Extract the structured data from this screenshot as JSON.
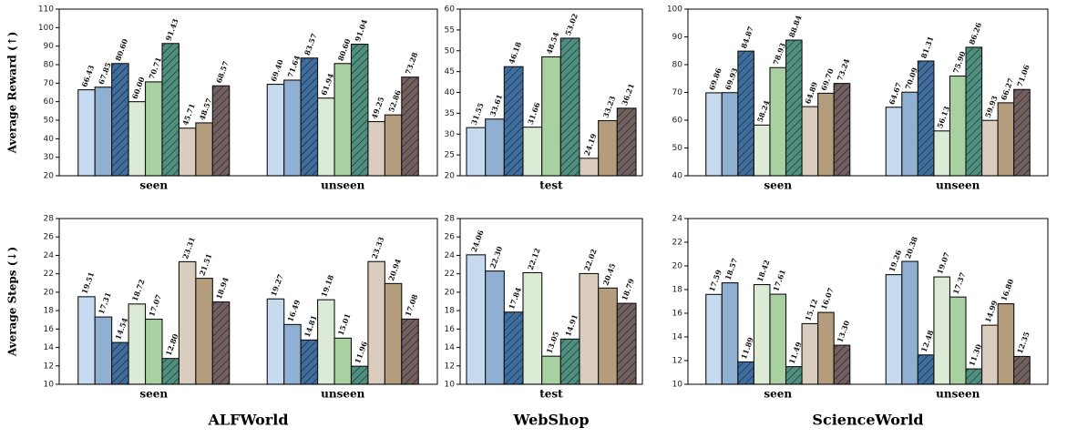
{
  "chart_data": [
    {
      "type": "bar",
      "ylabel": "Average Reward (↑)",
      "categories": [
        "seen",
        "unseen"
      ],
      "ylim": [
        20,
        110
      ],
      "yticks": [
        20,
        30,
        40,
        50,
        60,
        70,
        80,
        90,
        100,
        110
      ],
      "series": [
        {
          "color": "#c6dbef",
          "hatch": false,
          "values": [
            66.43,
            69.4
          ],
          "value_labels": [
            "66.43",
            "69.40"
          ]
        },
        {
          "color": "#8fb0d3",
          "hatch": false,
          "values": [
            67.85,
            71.64
          ],
          "value_labels": [
            "67.85",
            "71.64"
          ]
        },
        {
          "color": "#3f6d9e",
          "hatch": true,
          "values": [
            80.6,
            83.57
          ],
          "value_labels": [
            "80.60",
            "83.57"
          ]
        },
        {
          "color": "#dcebd5",
          "hatch": false,
          "values": [
            60.0,
            61.94
          ],
          "value_labels": [
            "60.00",
            "61.94"
          ]
        },
        {
          "color": "#a9d0a0",
          "hatch": false,
          "values": [
            70.71,
            80.6
          ],
          "value_labels": [
            "70.71",
            "80.60"
          ]
        },
        {
          "color": "#4f8f80",
          "hatch": true,
          "values": [
            91.43,
            91.04
          ],
          "value_labels": [
            "91.43",
            "91.04"
          ]
        },
        {
          "color": "#dacdbf",
          "hatch": false,
          "values": [
            45.71,
            49.25
          ],
          "value_labels": [
            "45.71",
            "49.25"
          ]
        },
        {
          "color": "#b39d7d",
          "hatch": false,
          "values": [
            48.57,
            52.86
          ],
          "value_labels": [
            "48.57",
            "52.86"
          ]
        },
        {
          "color": "#725f60",
          "hatch": true,
          "values": [
            68.57,
            73.28
          ],
          "value_labels": [
            "68.57",
            "73.28"
          ]
        }
      ]
    },
    {
      "type": "bar",
      "categories": [
        "test"
      ],
      "ylim": [
        20,
        60
      ],
      "yticks": [
        20,
        25,
        30,
        35,
        40,
        45,
        50,
        55,
        60
      ],
      "series": [
        {
          "color": "#c6dbef",
          "hatch": false,
          "values": [
            31.55
          ],
          "value_labels": [
            "31.55"
          ]
        },
        {
          "color": "#8fb0d3",
          "hatch": false,
          "values": [
            33.61
          ],
          "value_labels": [
            "33.61"
          ]
        },
        {
          "color": "#3f6d9e",
          "hatch": true,
          "values": [
            46.18
          ],
          "value_labels": [
            "46.18"
          ]
        },
        {
          "color": "#dcebd5",
          "hatch": false,
          "values": [
            31.66
          ],
          "value_labels": [
            "31.66"
          ]
        },
        {
          "color": "#a9d0a0",
          "hatch": false,
          "values": [
            48.54
          ],
          "value_labels": [
            "48.54"
          ]
        },
        {
          "color": "#4f8f80",
          "hatch": true,
          "values": [
            53.02
          ],
          "value_labels": [
            "53.02"
          ]
        },
        {
          "color": "#dacdbf",
          "hatch": false,
          "values": [
            24.19
          ],
          "value_labels": [
            "24.19"
          ]
        },
        {
          "color": "#b39d7d",
          "hatch": false,
          "values": [
            33.23
          ],
          "value_labels": [
            "33.23"
          ]
        },
        {
          "color": "#725f60",
          "hatch": true,
          "values": [
            36.21
          ],
          "value_labels": [
            "36.21"
          ]
        }
      ]
    },
    {
      "type": "bar",
      "categories": [
        "seen",
        "unseen"
      ],
      "ylim": [
        40,
        100
      ],
      "yticks": [
        40,
        50,
        60,
        70,
        80,
        90,
        100
      ],
      "series": [
        {
          "color": "#c6dbef",
          "hatch": false,
          "values": [
            69.86,
            64.67
          ],
          "value_labels": [
            "69.86",
            "64.67"
          ]
        },
        {
          "color": "#8fb0d3",
          "hatch": false,
          "values": [
            69.93,
            70.09
          ],
          "value_labels": [
            "69.93",
            "70.09"
          ]
        },
        {
          "color": "#3f6d9e",
          "hatch": true,
          "values": [
            84.87,
            81.31
          ],
          "value_labels": [
            "84.87",
            "81.31"
          ]
        },
        {
          "color": "#dcebd5",
          "hatch": false,
          "values": [
            58.24,
            56.13
          ],
          "value_labels": [
            "58.24",
            "56.13"
          ]
        },
        {
          "color": "#a9d0a0",
          "hatch": false,
          "values": [
            78.93,
            75.9
          ],
          "value_labels": [
            "78.93",
            "75.90"
          ]
        },
        {
          "color": "#4f8f80",
          "hatch": true,
          "values": [
            88.84,
            86.26
          ],
          "value_labels": [
            "88.84",
            "86.26"
          ]
        },
        {
          "color": "#dacdbf",
          "hatch": false,
          "values": [
            64.89,
            59.93
          ],
          "value_labels": [
            "64.89",
            "59.93"
          ]
        },
        {
          "color": "#b39d7d",
          "hatch": false,
          "values": [
            69.7,
            66.27
          ],
          "value_labels": [
            "69.70",
            "66.27"
          ]
        },
        {
          "color": "#725f60",
          "hatch": true,
          "values": [
            73.24,
            71.06
          ],
          "value_labels": [
            "73.24",
            "71.06"
          ]
        }
      ]
    },
    {
      "type": "bar",
      "ylabel": "Average Steps (↓)",
      "title": "ALFWorld",
      "categories": [
        "seen",
        "unseen"
      ],
      "ylim": [
        10,
        28
      ],
      "yticks": [
        10,
        12,
        14,
        16,
        18,
        20,
        22,
        24,
        26,
        28
      ],
      "series": [
        {
          "color": "#c6dbef",
          "hatch": false,
          "values": [
            19.51,
            19.27
          ],
          "value_labels": [
            "19.51",
            "19.27"
          ]
        },
        {
          "color": "#8fb0d3",
          "hatch": false,
          "values": [
            17.31,
            16.49
          ],
          "value_labels": [
            "17.31",
            "16.49"
          ]
        },
        {
          "color": "#3f6d9e",
          "hatch": true,
          "values": [
            14.54,
            14.81
          ],
          "value_labels": [
            "14.54",
            "14.81"
          ]
        },
        {
          "color": "#dcebd5",
          "hatch": false,
          "values": [
            18.72,
            19.18
          ],
          "value_labels": [
            "18.72",
            "19.18"
          ]
        },
        {
          "color": "#a9d0a0",
          "hatch": false,
          "values": [
            17.07,
            15.01
          ],
          "value_labels": [
            "17.07",
            "15.01"
          ]
        },
        {
          "color": "#4f8f80",
          "hatch": true,
          "values": [
            12.8,
            11.96
          ],
          "value_labels": [
            "12.80",
            "11.96"
          ]
        },
        {
          "color": "#dacdbf",
          "hatch": false,
          "values": [
            23.31,
            23.33
          ],
          "value_labels": [
            "23.31",
            "23.33"
          ]
        },
        {
          "color": "#b39d7d",
          "hatch": false,
          "values": [
            21.51,
            20.94
          ],
          "value_labels": [
            "21.51",
            "20.94"
          ]
        },
        {
          "color": "#725f60",
          "hatch": true,
          "values": [
            18.94,
            17.08
          ],
          "value_labels": [
            "18.94",
            "17.08"
          ]
        }
      ]
    },
    {
      "type": "bar",
      "title": "WebShop",
      "categories": [
        "test"
      ],
      "ylim": [
        10,
        28
      ],
      "yticks": [
        10,
        12,
        14,
        16,
        18,
        20,
        22,
        24,
        26,
        28
      ],
      "series": [
        {
          "color": "#c6dbef",
          "hatch": false,
          "values": [
            24.06
          ],
          "value_labels": [
            "24.06"
          ]
        },
        {
          "color": "#8fb0d3",
          "hatch": false,
          "values": [
            22.3
          ],
          "value_labels": [
            "22.30"
          ]
        },
        {
          "color": "#3f6d9e",
          "hatch": true,
          "values": [
            17.84
          ],
          "value_labels": [
            "17.84"
          ]
        },
        {
          "color": "#dcebd5",
          "hatch": false,
          "values": [
            22.12
          ],
          "value_labels": [
            "22.12"
          ]
        },
        {
          "color": "#a9d0a0",
          "hatch": false,
          "values": [
            13.05
          ],
          "value_labels": [
            "13.05"
          ]
        },
        {
          "color": "#4f8f80",
          "hatch": true,
          "values": [
            14.91
          ],
          "value_labels": [
            "14.91"
          ]
        },
        {
          "color": "#dacdbf",
          "hatch": false,
          "values": [
            22.02
          ],
          "value_labels": [
            "22.02"
          ]
        },
        {
          "color": "#b39d7d",
          "hatch": false,
          "values": [
            20.45
          ],
          "value_labels": [
            "20.45"
          ]
        },
        {
          "color": "#725f60",
          "hatch": true,
          "values": [
            18.79
          ],
          "value_labels": [
            "18.79"
          ]
        }
      ]
    },
    {
      "type": "bar",
      "title": "ScienceWorld",
      "categories": [
        "seen",
        "unseen"
      ],
      "ylim": [
        10,
        24
      ],
      "yticks": [
        10,
        12,
        14,
        16,
        18,
        20,
        22,
        24
      ],
      "series": [
        {
          "color": "#c6dbef",
          "hatch": false,
          "values": [
            17.59,
            19.26
          ],
          "value_labels": [
            "17.59",
            "19.26"
          ]
        },
        {
          "color": "#8fb0d3",
          "hatch": false,
          "values": [
            18.57,
            20.38
          ],
          "value_labels": [
            "18.57",
            "20.38"
          ]
        },
        {
          "color": "#3f6d9e",
          "hatch": true,
          "values": [
            11.89,
            12.48
          ],
          "value_labels": [
            "11.89",
            "12.48"
          ]
        },
        {
          "color": "#dcebd5",
          "hatch": false,
          "values": [
            18.42,
            19.07
          ],
          "value_labels": [
            "18.42",
            "19.07"
          ]
        },
        {
          "color": "#a9d0a0",
          "hatch": false,
          "values": [
            17.61,
            17.37
          ],
          "value_labels": [
            "17.61",
            "17.37"
          ]
        },
        {
          "color": "#4f8f80",
          "hatch": true,
          "values": [
            11.49,
            11.3
          ],
          "value_labels": [
            "11.49",
            "11.30"
          ]
        },
        {
          "color": "#dacdbf",
          "hatch": false,
          "values": [
            15.12,
            14.99
          ],
          "value_labels": [
            "15.12",
            "14.99"
          ]
        },
        {
          "color": "#b39d7d",
          "hatch": false,
          "values": [
            16.07,
            16.8
          ],
          "value_labels": [
            "16.07",
            "16.80"
          ]
        },
        {
          "color": "#725f60",
          "hatch": true,
          "values": [
            13.3,
            12.35
          ],
          "value_labels": [
            "13.30",
            "12.35"
          ]
        }
      ]
    }
  ]
}
